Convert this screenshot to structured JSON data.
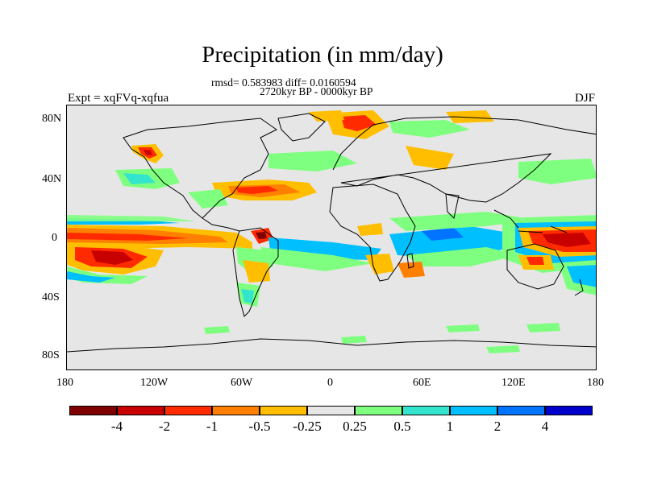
{
  "title": "Precipitation (in mm/day)",
  "subtitle_stats": "rmsd= 0.583983 diff= 0.0160594",
  "subtitle_period": "2720kyr BP - 0000kyr BP",
  "left_label": "Expt = xqFVq-xqfua",
  "right_label": "DJF",
  "y_ticks": [
    "80N",
    "40N",
    "0",
    "40S",
    "80S"
  ],
  "x_ticks": [
    "180",
    "120W",
    "60W",
    "0",
    "60E",
    "120E",
    "180"
  ],
  "colorbar": {
    "colors": [
      "#7f0000",
      "#c80000",
      "#ff2a00",
      "#ff7f00",
      "#ffbf00",
      "#e6e6e6",
      "#7fff7f",
      "#33e5cc",
      "#00bfff",
      "#0073ff",
      "#0000cc"
    ],
    "labels": [
      "-4",
      "-2",
      "-1",
      "-0.5",
      "-0.25",
      "0.25",
      "0.5",
      "1",
      "2",
      "4"
    ]
  }
}
